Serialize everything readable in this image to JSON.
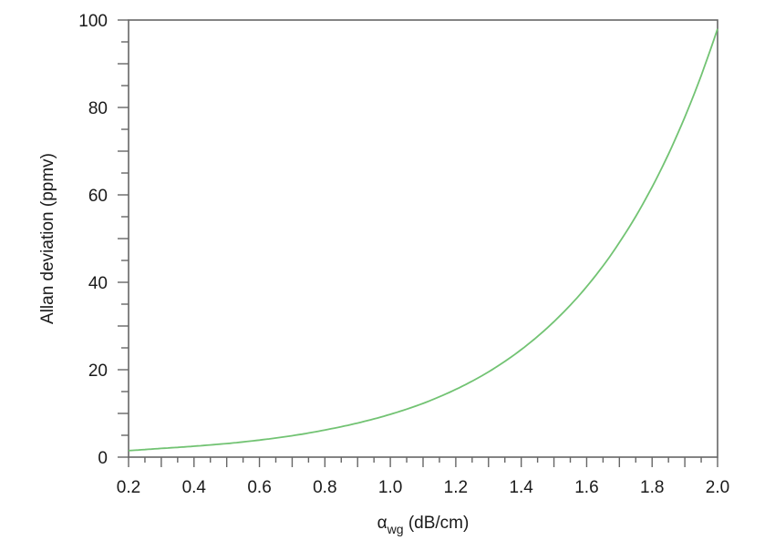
{
  "chart_data": {
    "type": "line",
    "title": "",
    "xlabel": "α_wg (dB/cm)",
    "xlabel_parts": {
      "symbol": "α",
      "subscript": "wg",
      "unit": " (dB/cm)"
    },
    "ylabel": "Allan deviation (ppmv)",
    "xlim": [
      0.2,
      2.0
    ],
    "ylim": [
      0,
      100
    ],
    "x_ticks": [
      "0.2",
      "0.4",
      "0.6",
      "0.8",
      "1.0",
      "1.2",
      "1.4",
      "1.6",
      "1.8",
      "2.0"
    ],
    "y_ticks": [
      "0",
      "20",
      "40",
      "60",
      "80",
      "100"
    ],
    "grid": false,
    "legend": null,
    "series": [
      {
        "name": "Allan deviation",
        "color": "#72c373",
        "x": [
          0.2,
          0.3,
          0.4,
          0.5,
          0.6,
          0.7,
          0.8,
          0.9,
          1.0,
          1.1,
          1.2,
          1.3,
          1.4,
          1.5,
          1.6,
          1.7,
          1.8,
          1.9,
          2.0
        ],
        "values": [
          1.5,
          2.0,
          2.5,
          3.1,
          3.9,
          4.9,
          6.2,
          7.8,
          9.8,
          12.3,
          15.5,
          19.5,
          24.6,
          31.0,
          39.0,
          49.1,
          61.8,
          77.8,
          98.0
        ]
      }
    ]
  },
  "style": {
    "axis_color": "#666666",
    "text_color": "#1a1a1a"
  }
}
